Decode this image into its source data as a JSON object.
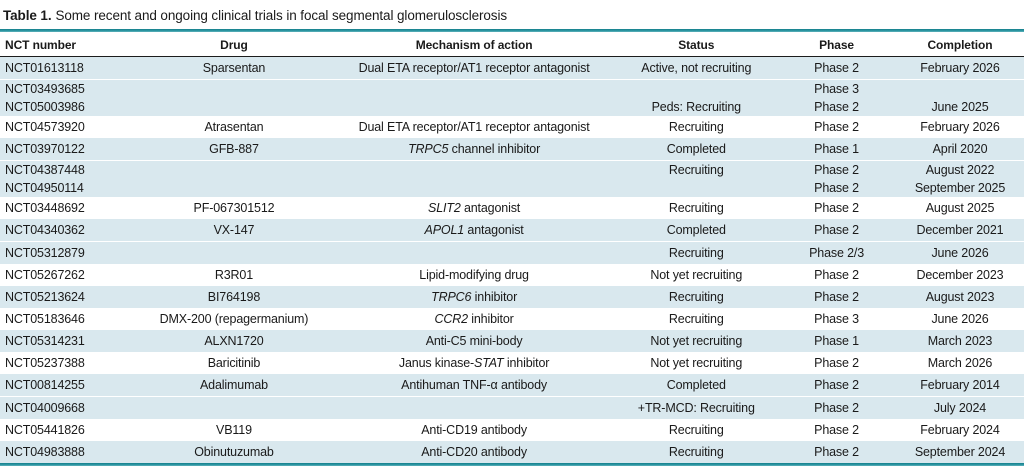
{
  "title": {
    "label": "Table 1.",
    "text": "Some recent and ongoing clinical trials in focal segmental glomerulosclerosis"
  },
  "table": {
    "columns": [
      "NCT number",
      "Drug",
      "Mechanism of action",
      "Status",
      "Phase",
      "Completion"
    ],
    "groups": [
      {
        "rows": [
          {
            "nct": "NCT01613118",
            "drug": "Sparsentan",
            "mech": [
              {
                "t": "Dual ETA receptor/AT1 receptor antagonist"
              }
            ],
            "status": "Active, not recruiting",
            "phase": "Phase 2",
            "completion": "February 2026"
          },
          {
            "nct": "NCT03493685",
            "drug": "",
            "mech": [],
            "status": "",
            "phase": "Phase 3",
            "completion": ""
          },
          {
            "nct": "NCT05003986",
            "drug": "",
            "mech": [],
            "status": "Peds: Recruiting",
            "phase": "Phase 2",
            "completion": "June 2025"
          }
        ]
      },
      {
        "rows": [
          {
            "nct": "NCT04573920",
            "drug": "Atrasentan",
            "mech": [
              {
                "t": "Dual ETA receptor/AT1 receptor antagonist"
              }
            ],
            "status": "Recruiting",
            "phase": "Phase 2",
            "completion": "February 2026"
          }
        ]
      },
      {
        "rows": [
          {
            "nct": "NCT03970122",
            "drug": "GFB-887",
            "mech": [
              {
                "t": "TRPC5",
                "i": true
              },
              {
                "t": " channel inhibitor"
              }
            ],
            "status": "Completed",
            "phase": "Phase 1",
            "completion": "April 2020"
          },
          {
            "nct": "NCT04387448",
            "drug": "",
            "mech": [],
            "status": "Recruiting",
            "phase": "Phase 2",
            "completion": "August 2022"
          },
          {
            "nct": "NCT04950114",
            "drug": "",
            "mech": [],
            "status": "",
            "phase": "Phase 2",
            "completion": "September 2025"
          }
        ]
      },
      {
        "rows": [
          {
            "nct": "NCT03448692",
            "drug": "PF-067301512",
            "mech": [
              {
                "t": "SLIT2",
                "i": true
              },
              {
                "t": " antagonist"
              }
            ],
            "status": "Recruiting",
            "phase": "Phase 2",
            "completion": "August 2025"
          }
        ]
      },
      {
        "rows": [
          {
            "nct": "NCT04340362",
            "drug": "VX-147",
            "mech": [
              {
                "t": "APOL1",
                "i": true
              },
              {
                "t": " antagonist"
              }
            ],
            "status": "Completed",
            "phase": "Phase 2",
            "completion": "December 2021"
          },
          {
            "nct": "NCT05312879",
            "drug": "",
            "mech": [],
            "status": "Recruiting",
            "phase": "Phase 2/3",
            "completion": "June 2026"
          }
        ]
      },
      {
        "rows": [
          {
            "nct": "NCT05267262",
            "drug": "R3R01",
            "mech": [
              {
                "t": "Lipid-modifying drug"
              }
            ],
            "status": "Not yet recruiting",
            "phase": "Phase 2",
            "completion": "December 2023"
          }
        ]
      },
      {
        "rows": [
          {
            "nct": "NCT05213624",
            "drug": "BI764198",
            "mech": [
              {
                "t": "TRPC6",
                "i": true
              },
              {
                "t": " inhibitor"
              }
            ],
            "status": "Recruiting",
            "phase": "Phase 2",
            "completion": "August 2023"
          }
        ]
      },
      {
        "rows": [
          {
            "nct": "NCT05183646",
            "drug": "DMX-200 (repagermanium)",
            "mech": [
              {
                "t": "CCR2",
                "i": true
              },
              {
                "t": " inhibitor"
              }
            ],
            "status": "Recruiting",
            "phase": "Phase 3",
            "completion": "June 2026"
          }
        ]
      },
      {
        "rows": [
          {
            "nct": "NCT05314231",
            "drug": "ALXN1720",
            "mech": [
              {
                "t": "Anti-C5 mini-body"
              }
            ],
            "status": "Not yet recruiting",
            "phase": "Phase 1",
            "completion": "March 2023"
          }
        ]
      },
      {
        "rows": [
          {
            "nct": "NCT05237388",
            "drug": "Baricitinib",
            "mech": [
              {
                "t": "Janus kinase-"
              },
              {
                "t": "STAT",
                "i": true
              },
              {
                "t": " inhibitor"
              }
            ],
            "status": "Not yet recruiting",
            "phase": "Phase 2",
            "completion": "March 2026"
          }
        ]
      },
      {
        "rows": [
          {
            "nct": "NCT00814255",
            "drug": "Adalimumab",
            "mech": [
              {
                "t": "Antihuman TNF-α antibody"
              }
            ],
            "status": "Completed",
            "phase": "Phase 2",
            "completion": "February 2014"
          },
          {
            "nct": "NCT04009668",
            "drug": "",
            "mech": [],
            "status": "+TR-MCD: Recruiting",
            "phase": "Phase 2",
            "completion": "July 2024"
          }
        ]
      },
      {
        "rows": [
          {
            "nct": "NCT05441826",
            "drug": "VB119",
            "mech": [
              {
                "t": "Anti-CD19 antibody"
              }
            ],
            "status": "Recruiting",
            "phase": "Phase 2",
            "completion": "February 2024"
          }
        ]
      },
      {
        "rows": [
          {
            "nct": "NCT04983888",
            "drug": "Obinutuzumab",
            "mech": [
              {
                "t": "Anti-CD20 antibody"
              }
            ],
            "status": "Recruiting",
            "phase": "Phase 2",
            "completion": "September 2024"
          }
        ]
      }
    ]
  },
  "colors": {
    "band": "#d9e8ee",
    "rule_teal": "#2a95a1",
    "text": "#1a1a1a"
  }
}
